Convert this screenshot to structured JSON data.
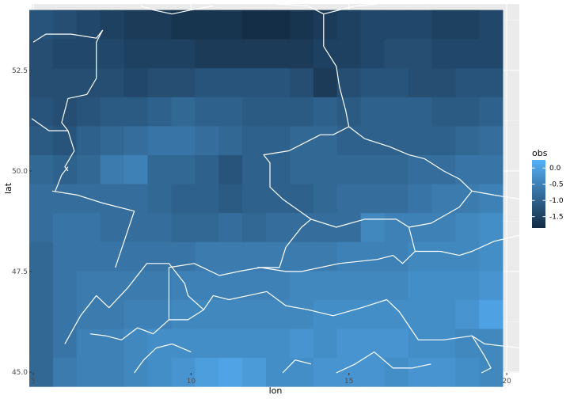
{
  "chart_data": {
    "type": "heatmap",
    "title": "",
    "xlabel": "lon",
    "ylabel": "lat",
    "xlim": [
      4.95,
      20.4
    ],
    "ylim": [
      44.98,
      54.15
    ],
    "x_ticks": [
      5,
      10,
      15,
      20
    ],
    "y_ticks": [
      45.0,
      47.5,
      50.0,
      52.5
    ],
    "x_tick_labels": [
      "5",
      "10",
      "15",
      "20"
    ],
    "y_tick_labels": [
      "45.0",
      "47.5",
      "50.0",
      "52.5"
    ],
    "grid": true,
    "tiles": {
      "lon_start": 5.25,
      "lon_step": 0.75,
      "lon_count": 20,
      "lat_start": 45.0,
      "lat_step": 0.72,
      "lat_count": 13
    },
    "legend": {
      "title": "obs",
      "placement": "right",
      "range": [
        -1.85,
        0.25
      ],
      "ticks": [
        0.0,
        -0.5,
        -1.0,
        -1.5
      ],
      "tick_labels": [
        "0.0",
        "-0.5",
        "-1.0",
        "-1.5"
      ],
      "color_low": "#132b43",
      "color_high": "#56b1f7"
    },
    "values": [
      [
        -0.9,
        -0.6,
        -0.5,
        -0.5,
        -0.4,
        -0.3,
        -0.2,
        -0.05,
        0.05,
        -0.1,
        -0.3,
        -0.3,
        -0.2,
        -0.2,
        -0.2,
        -0.3,
        -0.2,
        -0.2,
        -0.3,
        -0.4
      ],
      [
        -0.9,
        -0.7,
        -0.5,
        -0.5,
        -0.4,
        -0.3,
        -0.3,
        -0.3,
        -0.3,
        -0.3,
        -0.3,
        -0.2,
        -0.3,
        -0.2,
        -0.2,
        -0.2,
        -0.3,
        -0.3,
        -0.4,
        -0.4
      ],
      [
        -0.9,
        -0.7,
        -0.6,
        -0.6,
        -0.5,
        -0.5,
        -0.4,
        -0.4,
        -0.4,
        -0.4,
        -0.4,
        -0.4,
        -0.3,
        -0.3,
        -0.3,
        -0.3,
        -0.3,
        -0.3,
        -0.2,
        0.0
      ],
      [
        -0.9,
        -0.7,
        -0.6,
        -0.6,
        -0.6,
        -0.6,
        -0.5,
        -0.5,
        -0.5,
        -0.5,
        -0.5,
        -0.4,
        -0.4,
        -0.4,
        -0.4,
        -0.4,
        -0.3,
        -0.3,
        -0.3,
        -0.2
      ],
      [
        -0.9,
        -0.7,
        -0.7,
        -0.7,
        -0.7,
        -0.7,
        -0.7,
        -0.6,
        -0.6,
        -0.6,
        -0.6,
        -0.6,
        -0.6,
        -0.5,
        -0.5,
        -0.5,
        -0.4,
        -0.4,
        -0.4,
        -0.3
      ],
      [
        -0.8,
        -0.7,
        -0.7,
        -0.8,
        -0.8,
        -0.8,
        -0.9,
        -0.9,
        -0.8,
        -0.9,
        -0.8,
        -0.8,
        -0.8,
        -0.8,
        -0.4,
        -0.5,
        -0.5,
        -0.5,
        -0.4,
        -0.3
      ],
      [
        -0.8,
        -0.8,
        -0.8,
        -0.8,
        -0.8,
        -0.9,
        -1.0,
        -1.0,
        -1.1,
        -1.0,
        -1.0,
        -1.0,
        -0.9,
        -0.8,
        -0.8,
        -0.8,
        -0.7,
        -0.6,
        -0.6,
        -0.5
      ],
      [
        -0.9,
        -1.0,
        -0.9,
        -0.6,
        -0.5,
        -0.9,
        -0.9,
        -1.0,
        -1.2,
        -1.0,
        -1.0,
        -0.9,
        -0.9,
        -0.9,
        -0.9,
        -0.9,
        -0.8,
        -0.8,
        -0.7,
        -0.7
      ],
      [
        -1.1,
        -1.2,
        -1.0,
        -0.9,
        -0.8,
        -0.7,
        -0.7,
        -0.8,
        -0.9,
        -1.0,
        -1.0,
        -0.9,
        -0.9,
        -1.0,
        -1.0,
        -1.0,
        -1.0,
        -1.0,
        -0.9,
        -0.8
      ],
      [
        -1.2,
        -1.3,
        -1.2,
        -1.1,
        -1.1,
        -1.0,
        -0.9,
        -1.0,
        -1.0,
        -1.1,
        -1.1,
        -1.1,
        -1.0,
        -1.1,
        -1.0,
        -1.0,
        -1.0,
        -1.1,
        -1.1,
        -1.0
      ],
      [
        -1.3,
        -1.3,
        -1.3,
        -1.3,
        -1.4,
        -1.3,
        -1.3,
        -1.2,
        -1.2,
        -1.2,
        -1.2,
        -1.3,
        -1.6,
        -1.3,
        -1.2,
        -1.2,
        -1.3,
        -1.3,
        -1.2,
        -1.2
      ],
      [
        -1.3,
        -1.4,
        -1.4,
        -1.4,
        -1.5,
        -1.5,
        -1.5,
        -1.6,
        -1.6,
        -1.6,
        -1.6,
        -1.6,
        -1.5,
        -1.5,
        -1.4,
        -1.3,
        -1.3,
        -1.4,
        -1.4,
        -1.4
      ],
      [
        -1.2,
        -1.3,
        -1.4,
        -1.5,
        -1.6,
        -1.6,
        -1.7,
        -1.7,
        -1.7,
        -1.8,
        -1.8,
        -1.7,
        -1.6,
        -1.5,
        -1.4,
        -1.4,
        -1.4,
        -1.5,
        -1.5,
        -1.4
      ]
    ],
    "boundaries": [
      [
        [
          6.8,
          45.95
        ],
        [
          7.3,
          45.9
        ],
        [
          7.8,
          45.8
        ],
        [
          8.3,
          46.1
        ],
        [
          8.8,
          45.95
        ],
        [
          9.3,
          46.3
        ],
        [
          9.9,
          46.3
        ],
        [
          10.4,
          46.55
        ],
        [
          10.7,
          46.9
        ],
        [
          11.2,
          46.8
        ],
        [
          11.8,
          46.9
        ],
        [
          12.4,
          47.0
        ],
        [
          13.0,
          46.65
        ],
        [
          13.7,
          46.55
        ],
        [
          14.5,
          46.4
        ],
        [
          15.4,
          46.6
        ],
        [
          16.2,
          46.8
        ],
        [
          16.6,
          46.5
        ],
        [
          17.2,
          45.8
        ],
        [
          18.0,
          45.8
        ],
        [
          18.9,
          45.9
        ],
        [
          19.3,
          45.7
        ],
        [
          20.4,
          45.6
        ]
      ],
      [
        [
          6.0,
          45.7
        ],
        [
          6.5,
          46.4
        ],
        [
          7.0,
          46.9
        ],
        [
          7.4,
          46.6
        ],
        [
          8.0,
          47.1
        ],
        [
          8.6,
          47.7
        ],
        [
          9.3,
          47.7
        ],
        [
          9.8,
          47.2
        ],
        [
          9.9,
          46.9
        ],
        [
          10.4,
          46.55
        ]
      ],
      [
        [
          9.3,
          46.3
        ],
        [
          9.3,
          47.6
        ],
        [
          10.1,
          47.7
        ],
        [
          10.9,
          47.4
        ],
        [
          11.5,
          47.5
        ],
        [
          12.2,
          47.6
        ],
        [
          13.0,
          47.5
        ],
        [
          13.5,
          47.5
        ],
        [
          14.7,
          47.7
        ],
        [
          15.9,
          47.8
        ],
        [
          16.4,
          47.9
        ],
        [
          16.7,
          47.7
        ],
        [
          17.1,
          48.0
        ],
        [
          17.9,
          48.0
        ],
        [
          18.5,
          47.9
        ],
        [
          18.9,
          48.0
        ],
        [
          19.6,
          48.25
        ],
        [
          20.4,
          48.4
        ]
      ],
      [
        [
          12.1,
          47.6
        ],
        [
          12.8,
          47.6
        ],
        [
          13.0,
          48.1
        ],
        [
          13.5,
          48.6
        ],
        [
          13.8,
          48.8
        ],
        [
          12.9,
          49.3
        ],
        [
          12.5,
          49.6
        ],
        [
          12.5,
          50.2
        ],
        [
          12.3,
          50.4
        ],
        [
          13.1,
          50.5
        ],
        [
          14.1,
          50.9
        ],
        [
          14.5,
          50.9
        ],
        [
          15.0,
          51.1
        ],
        [
          15.5,
          50.8
        ],
        [
          16.3,
          50.6
        ],
        [
          16.9,
          50.4
        ],
        [
          17.4,
          50.3
        ],
        [
          18.0,
          50.0
        ],
        [
          18.5,
          49.8
        ],
        [
          18.9,
          49.5
        ]
      ],
      [
        [
          16.9,
          48.6
        ],
        [
          17.6,
          48.7
        ],
        [
          18.5,
          49.1
        ],
        [
          18.9,
          49.5
        ],
        [
          19.6,
          49.4
        ],
        [
          20.4,
          49.3
        ]
      ],
      [
        [
          13.8,
          48.8
        ],
        [
          14.6,
          48.6
        ],
        [
          15.5,
          48.8
        ],
        [
          16.5,
          48.8
        ],
        [
          16.9,
          48.6
        ],
        [
          17.1,
          48.0
        ]
      ],
      [
        [
          6.1,
          50.0
        ],
        [
          6.0,
          50.1
        ],
        [
          6.3,
          50.5
        ],
        [
          6.1,
          51.0
        ],
        [
          5.9,
          51.2
        ],
        [
          6.1,
          51.8
        ],
        [
          6.7,
          51.9
        ],
        [
          7.0,
          52.3
        ],
        [
          7.0,
          53.2
        ],
        [
          7.2,
          53.5
        ]
      ],
      [
        [
          5.6,
          49.5
        ],
        [
          6.4,
          49.4
        ],
        [
          7.2,
          49.2
        ],
        [
          8.2,
          49.0
        ],
        [
          7.6,
          47.6
        ]
      ],
      [
        [
          5.7,
          49.5
        ],
        [
          5.9,
          49.9
        ],
        [
          6.1,
          50.1
        ]
      ],
      [
        [
          4.95,
          51.3
        ],
        [
          5.5,
          51.0
        ],
        [
          6.1,
          51.0
        ]
      ],
      [
        [
          14.2,
          53.9
        ],
        [
          14.2,
          53.1
        ],
        [
          14.6,
          52.6
        ],
        [
          14.7,
          52.1
        ],
        [
          14.9,
          51.5
        ],
        [
          15.0,
          51.1
        ]
      ],
      [
        [
          8.4,
          54.1
        ],
        [
          8.8,
          54.0
        ],
        [
          9.4,
          53.9
        ],
        [
          10.0,
          54.0
        ],
        [
          10.7,
          54.1
        ]
      ],
      [
        [
          12.7,
          54.15
        ],
        [
          13.7,
          54.1
        ],
        [
          14.2,
          53.9
        ],
        [
          15.2,
          54.1
        ],
        [
          15.9,
          54.15
        ]
      ],
      [
        [
          5.0,
          53.2
        ],
        [
          5.4,
          53.4
        ],
        [
          6.2,
          53.4
        ],
        [
          7.0,
          53.3
        ],
        [
          7.2,
          53.5
        ]
      ],
      [
        [
          18.9,
          45.9
        ],
        [
          19.3,
          45.4
        ],
        [
          19.5,
          45.1
        ],
        [
          19.2,
          44.98
        ]
      ],
      [
        [
          8.2,
          44.98
        ],
        [
          8.5,
          45.3
        ],
        [
          8.9,
          45.6
        ],
        [
          9.4,
          45.7
        ],
        [
          10.0,
          45.5
        ]
      ],
      [
        [
          14.6,
          44.98
        ],
        [
          15.2,
          45.2
        ],
        [
          15.8,
          45.5
        ],
        [
          16.4,
          45.1
        ],
        [
          17.0,
          45.1
        ],
        [
          17.6,
          45.2
        ]
      ],
      [
        [
          12.9,
          44.98
        ],
        [
          13.3,
          45.3
        ],
        [
          13.8,
          45.2
        ]
      ]
    ]
  }
}
